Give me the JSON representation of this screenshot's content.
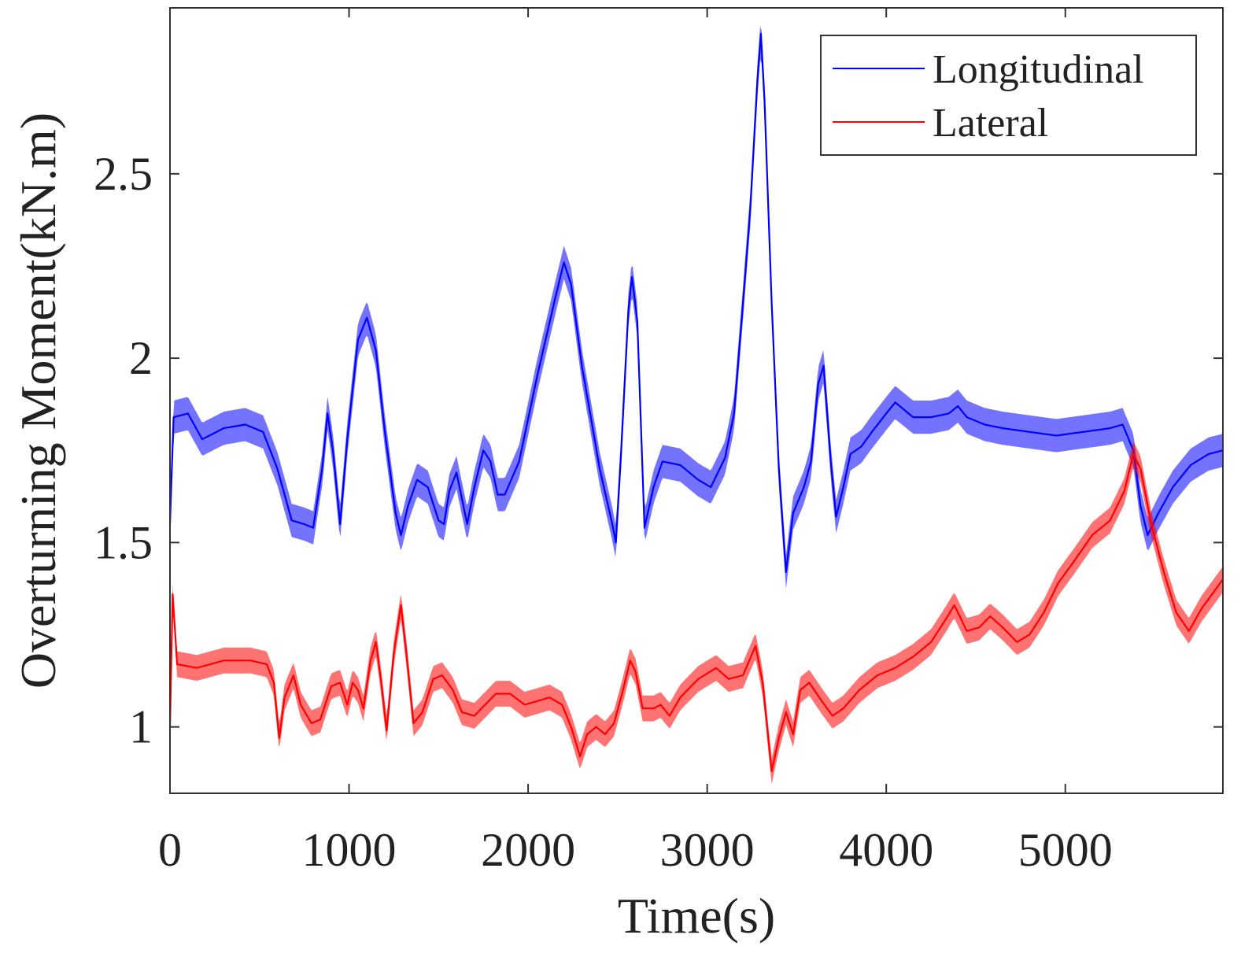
{
  "chart_data": {
    "type": "line",
    "title": "",
    "xlabel": "Time(s)",
    "ylabel": "Overturning Moment(kN.m)",
    "xlim": [
      0,
      5880
    ],
    "ylim": [
      0.82,
      2.95
    ],
    "xticks": [
      0,
      1000,
      2000,
      3000,
      4000,
      5000
    ],
    "xtick_labels": [
      "0",
      "1000",
      "2000",
      "3000",
      "4000",
      "5000"
    ],
    "yticks": [
      1,
      1.5,
      2,
      2.5
    ],
    "ytick_labels": [
      "1",
      "1.5",
      "2",
      "2.5"
    ],
    "grid": false,
    "legend_position": "top-right",
    "series": [
      {
        "name": "Longitudinal",
        "color": "#0000ff",
        "oscillation_halfband": 0.045,
        "points": [
          [
            0,
            1.55
          ],
          [
            20,
            1.84
          ],
          [
            100,
            1.85
          ],
          [
            180,
            1.78
          ],
          [
            300,
            1.81
          ],
          [
            420,
            1.82
          ],
          [
            520,
            1.8
          ],
          [
            600,
            1.7
          ],
          [
            680,
            1.56
          ],
          [
            750,
            1.55
          ],
          [
            800,
            1.54
          ],
          [
            850,
            1.7
          ],
          [
            880,
            1.85
          ],
          [
            910,
            1.75
          ],
          [
            950,
            1.55
          ],
          [
            990,
            1.78
          ],
          [
            1050,
            2.05
          ],
          [
            1100,
            2.11
          ],
          [
            1150,
            2.02
          ],
          [
            1200,
            1.8
          ],
          [
            1260,
            1.58
          ],
          [
            1290,
            1.52
          ],
          [
            1330,
            1.6
          ],
          [
            1380,
            1.67
          ],
          [
            1440,
            1.65
          ],
          [
            1500,
            1.56
          ],
          [
            1530,
            1.55
          ],
          [
            1560,
            1.64
          ],
          [
            1600,
            1.69
          ],
          [
            1630,
            1.62
          ],
          [
            1660,
            1.55
          ],
          [
            1700,
            1.65
          ],
          [
            1750,
            1.75
          ],
          [
            1790,
            1.72
          ],
          [
            1830,
            1.63
          ],
          [
            1870,
            1.63
          ],
          [
            1950,
            1.72
          ],
          [
            2050,
            1.95
          ],
          [
            2150,
            2.16
          ],
          [
            2200,
            2.26
          ],
          [
            2240,
            2.2
          ],
          [
            2300,
            1.98
          ],
          [
            2400,
            1.7
          ],
          [
            2470,
            1.55
          ],
          [
            2490,
            1.5
          ],
          [
            2520,
            1.75
          ],
          [
            2560,
            2.13
          ],
          [
            2580,
            2.22
          ],
          [
            2610,
            2.1
          ],
          [
            2650,
            1.54
          ],
          [
            2700,
            1.65
          ],
          [
            2750,
            1.72
          ],
          [
            2850,
            1.71
          ],
          [
            2950,
            1.67
          ],
          [
            3020,
            1.65
          ],
          [
            3100,
            1.73
          ],
          [
            3150,
            1.85
          ],
          [
            3200,
            2.15
          ],
          [
            3240,
            2.4
          ],
          [
            3280,
            2.75
          ],
          [
            3300,
            2.88
          ],
          [
            3320,
            2.7
          ],
          [
            3360,
            2.15
          ],
          [
            3400,
            1.7
          ],
          [
            3440,
            1.42
          ],
          [
            3480,
            1.58
          ],
          [
            3540,
            1.65
          ],
          [
            3580,
            1.72
          ],
          [
            3620,
            1.93
          ],
          [
            3650,
            1.98
          ],
          [
            3690,
            1.72
          ],
          [
            3720,
            1.57
          ],
          [
            3760,
            1.65
          ],
          [
            3800,
            1.74
          ],
          [
            3860,
            1.76
          ],
          [
            3920,
            1.8
          ],
          [
            4000,
            1.85
          ],
          [
            4050,
            1.88
          ],
          [
            4150,
            1.84
          ],
          [
            4250,
            1.84
          ],
          [
            4350,
            1.85
          ],
          [
            4400,
            1.87
          ],
          [
            4450,
            1.84
          ],
          [
            4550,
            1.82
          ],
          [
            4650,
            1.81
          ],
          [
            4800,
            1.8
          ],
          [
            4950,
            1.79
          ],
          [
            5100,
            1.8
          ],
          [
            5250,
            1.81
          ],
          [
            5320,
            1.82
          ],
          [
            5380,
            1.75
          ],
          [
            5420,
            1.6
          ],
          [
            5460,
            1.52
          ],
          [
            5520,
            1.58
          ],
          [
            5600,
            1.65
          ],
          [
            5700,
            1.71
          ],
          [
            5800,
            1.74
          ],
          [
            5880,
            1.75
          ]
        ]
      },
      {
        "name": "Lateral",
        "color": "#ff0000",
        "oscillation_halfband": 0.035,
        "points": [
          [
            0,
            1.0
          ],
          [
            15,
            1.36
          ],
          [
            40,
            1.17
          ],
          [
            150,
            1.16
          ],
          [
            300,
            1.18
          ],
          [
            450,
            1.18
          ],
          [
            540,
            1.17
          ],
          [
            580,
            1.12
          ],
          [
            610,
            0.97
          ],
          [
            640,
            1.08
          ],
          [
            690,
            1.14
          ],
          [
            730,
            1.06
          ],
          [
            790,
            1.01
          ],
          [
            840,
            1.02
          ],
          [
            900,
            1.11
          ],
          [
            950,
            1.12
          ],
          [
            990,
            1.06
          ],
          [
            1020,
            1.12
          ],
          [
            1050,
            1.1
          ],
          [
            1080,
            1.05
          ],
          [
            1120,
            1.18
          ],
          [
            1150,
            1.23
          ],
          [
            1180,
            1.12
          ],
          [
            1210,
            0.99
          ],
          [
            1250,
            1.2
          ],
          [
            1290,
            1.33
          ],
          [
            1320,
            1.2
          ],
          [
            1360,
            1.01
          ],
          [
            1410,
            1.04
          ],
          [
            1470,
            1.13
          ],
          [
            1520,
            1.14
          ],
          [
            1580,
            1.1
          ],
          [
            1630,
            1.04
          ],
          [
            1700,
            1.03
          ],
          [
            1760,
            1.06
          ],
          [
            1820,
            1.09
          ],
          [
            1900,
            1.09
          ],
          [
            1980,
            1.06
          ],
          [
            2050,
            1.07
          ],
          [
            2120,
            1.08
          ],
          [
            2190,
            1.06
          ],
          [
            2240,
            1.0
          ],
          [
            2290,
            0.92
          ],
          [
            2330,
            0.98
          ],
          [
            2380,
            1.0
          ],
          [
            2430,
            0.98
          ],
          [
            2480,
            1.01
          ],
          [
            2530,
            1.1
          ],
          [
            2570,
            1.18
          ],
          [
            2600,
            1.15
          ],
          [
            2640,
            1.05
          ],
          [
            2700,
            1.05
          ],
          [
            2740,
            1.06
          ],
          [
            2790,
            1.03
          ],
          [
            2850,
            1.08
          ],
          [
            2950,
            1.13
          ],
          [
            3050,
            1.16
          ],
          [
            3120,
            1.13
          ],
          [
            3200,
            1.14
          ],
          [
            3270,
            1.22
          ],
          [
            3310,
            1.12
          ],
          [
            3360,
            0.88
          ],
          [
            3400,
            0.97
          ],
          [
            3440,
            1.04
          ],
          [
            3480,
            0.98
          ],
          [
            3520,
            1.1
          ],
          [
            3570,
            1.12
          ],
          [
            3640,
            1.07
          ],
          [
            3700,
            1.03
          ],
          [
            3760,
            1.05
          ],
          [
            3850,
            1.1
          ],
          [
            3950,
            1.14
          ],
          [
            4050,
            1.16
          ],
          [
            4150,
            1.19
          ],
          [
            4250,
            1.23
          ],
          [
            4330,
            1.29
          ],
          [
            4380,
            1.33
          ],
          [
            4450,
            1.26
          ],
          [
            4520,
            1.27
          ],
          [
            4580,
            1.3
          ],
          [
            4650,
            1.27
          ],
          [
            4730,
            1.23
          ],
          [
            4800,
            1.25
          ],
          [
            4880,
            1.31
          ],
          [
            4960,
            1.39
          ],
          [
            5050,
            1.45
          ],
          [
            5150,
            1.52
          ],
          [
            5250,
            1.56
          ],
          [
            5330,
            1.64
          ],
          [
            5380,
            1.74
          ],
          [
            5420,
            1.7
          ],
          [
            5480,
            1.55
          ],
          [
            5550,
            1.42
          ],
          [
            5620,
            1.31
          ],
          [
            5690,
            1.26
          ],
          [
            5760,
            1.32
          ],
          [
            5880,
            1.4
          ]
        ]
      }
    ]
  }
}
